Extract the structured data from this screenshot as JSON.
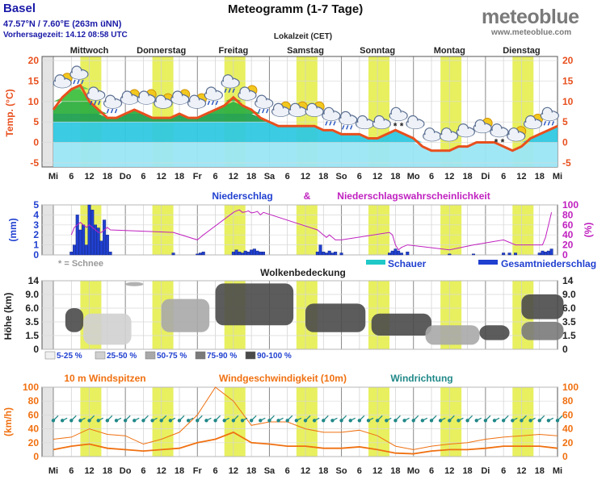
{
  "header": {
    "location": "Basel",
    "coordinates": "47.57°N / 7.60°E (263m üNN)",
    "issued": "Vorhersagezeit: 14.12 08:58 UTC",
    "title": "Meteogramm (1-7 Tage)",
    "logo": "meteoblue",
    "logo_url": "www.meteoblue.com",
    "local_time": "Lokalzeit (CET)"
  },
  "days": [
    "Mittwoch",
    "Donnerstag",
    "Freitag",
    "Samstag",
    "Sonntag",
    "Montag",
    "Dienstag"
  ],
  "x_axis_labels": [
    "Mi",
    "6",
    "12",
    "18",
    "Do",
    "6",
    "12",
    "18",
    "Fr",
    "6",
    "12",
    "18",
    "Sa",
    "6",
    "12",
    "18",
    "So",
    "6",
    "12",
    "18",
    "Mo",
    "6",
    "12",
    "18",
    "Di",
    "6",
    "12",
    "18",
    "Mi"
  ],
  "colors": {
    "temperature": "#e8501e",
    "precip": "#2040d0",
    "probability": "#c020c0",
    "shower": "#20c8c8",
    "wind_gust": "#f07010",
    "wind_speed": "#f07010",
    "wind_dir": "#208888",
    "daylight": "#e8f060",
    "axis_text": "#222222"
  },
  "chart_data": [
    {
      "type": "line",
      "panel": "temperature",
      "ylabel": "Temp. (°C)",
      "yticks": [
        20,
        15,
        10,
        5,
        0,
        -5
      ],
      "ylim": [
        -6,
        21
      ],
      "x_hours": [
        0,
        3,
        6,
        9,
        12,
        15,
        18,
        21,
        24,
        27,
        30,
        33,
        36,
        39,
        42,
        45,
        48,
        51,
        54,
        57,
        60,
        63,
        66,
        69,
        72,
        75,
        78,
        81,
        84,
        87,
        90,
        93,
        96,
        99,
        102,
        105,
        108,
        111,
        114,
        117,
        120,
        123,
        126,
        129,
        132,
        135,
        138,
        141,
        144,
        147,
        150,
        153,
        156,
        159,
        162,
        165,
        168
      ],
      "series": [
        {
          "name": "Temperature",
          "values": [
            8,
            11,
            13,
            14,
            10,
            8,
            6,
            6,
            7,
            8,
            7,
            6,
            6,
            6,
            7,
            6,
            6,
            7,
            8,
            9,
            11,
            9,
            8,
            6,
            5,
            4,
            4,
            4,
            4,
            4,
            3,
            3,
            2,
            2,
            2,
            1,
            1,
            2,
            3,
            2,
            1,
            -1,
            -2,
            -2,
            -2,
            -1,
            -1,
            0,
            0,
            0,
            -1,
            -2,
            -1,
            1,
            2,
            3,
            4
          ]
        }
      ],
      "weather_icons": [
        "cloud-sun",
        "rain-cloud",
        "rain-cloud",
        "rain-cloud",
        "sun-cloud",
        "sun-cloud",
        "sun-cloud",
        "sun-cloud",
        "sun-cloud",
        "rain-cloud",
        "rain-cloud",
        "sun-cloud",
        "rain-cloud",
        "sun-cloud",
        "sun-cloud",
        "sun-cloud",
        "rain-cloud",
        "rain-cloud",
        "cloud",
        "cloud",
        "snow-cloud",
        "cloud",
        "cloud",
        "cloud",
        "cloud",
        "sun-cloud",
        "snow-cloud",
        "sun-cloud",
        "sun-cloud",
        "rain-cloud"
      ]
    },
    {
      "type": "bar",
      "panel": "precipitation",
      "title": "Niederschlag",
      "amp": "&",
      "title2": "Niederschlagswahrscheinlichkeit",
      "ylabel": "(mm)",
      "ylabel_right": "(%)",
      "yticks": [
        5,
        4,
        3,
        2,
        1,
        0
      ],
      "yticks_right": [
        100,
        80,
        60,
        40,
        20,
        0
      ],
      "snow_note": "* = Schnee",
      "legend": [
        "Schauer",
        "Gesamtniederschlag"
      ],
      "x_hours": [
        6,
        7,
        8,
        9,
        10,
        11,
        12,
        13,
        14,
        15,
        16,
        17,
        18,
        19,
        40,
        48,
        49,
        50,
        60,
        61,
        62,
        63,
        64,
        65,
        66,
        67,
        68,
        69,
        70,
        88,
        89,
        90,
        91,
        92,
        93,
        94,
        96,
        112,
        113,
        114,
        115,
        116,
        118,
        132,
        140,
        150,
        152,
        154,
        162,
        163,
        164,
        165,
        166
      ],
      "series": [
        {
          "name": "Gesamtniederschlag",
          "values": [
            0.3,
            1,
            4,
            2.5,
            3,
            1,
            5,
            4.5,
            3,
            2.7,
            1.4,
            3.5,
            2,
            0.3,
            0.2,
            0.1,
            0.2,
            0.3,
            0.3,
            0.5,
            0.3,
            0.2,
            0.4,
            0.3,
            0.5,
            0.6,
            0.4,
            0.3,
            0.3,
            0.3,
            1,
            0.3,
            0.2,
            0.4,
            0.2,
            0.3,
            0.2,
            0.2,
            0.4,
            0.6,
            0.4,
            0.2,
            0.3,
            0.1,
            0.1,
            0.2,
            0.2,
            0.2,
            0.2,
            0.4,
            0.3,
            0.4,
            0.6
          ]
        },
        {
          "name": "Wahrscheinlichkeit",
          "values": [
            40,
            55,
            60,
            65,
            60,
            55,
            60,
            55,
            50,
            45,
            45,
            50,
            55,
            50,
            45,
            30,
            35,
            40,
            85,
            88,
            90,
            85,
            86,
            88,
            84,
            85,
            87,
            80,
            85,
            50,
            45,
            40,
            35,
            40,
            35,
            30,
            30,
            45,
            40,
            20,
            10,
            15,
            20,
            10,
            20,
            30,
            25,
            20,
            20,
            20,
            35,
            60,
            85
          ]
        }
      ]
    },
    {
      "type": "heatmap",
      "panel": "clouds",
      "title": "Wolkenbedeckung",
      "ylabel": "Höhe (km)",
      "yticks": [
        "14",
        "9.0",
        "6.0",
        "3.5",
        "1.5",
        "0"
      ],
      "legend": [
        "5-25 %",
        "25-50 %",
        "50-75 %",
        "75-90 %",
        "90-100 %"
      ],
      "blocks": [
        {
          "x": [
            4,
            10
          ],
          "y": [
            2,
            6
          ],
          "level": 4
        },
        {
          "x": [
            10,
            26
          ],
          "y": [
            0.5,
            5
          ],
          "level": 1
        },
        {
          "x": [
            24,
            30
          ],
          "y": [
            12,
            13.5
          ],
          "level": 2
        },
        {
          "x": [
            36,
            52
          ],
          "y": [
            2,
            8
          ],
          "level": 2
        },
        {
          "x": [
            54,
            80
          ],
          "y": [
            3,
            13
          ],
          "level": 4
        },
        {
          "x": [
            84,
            104
          ],
          "y": [
            2,
            7
          ],
          "level": 4
        },
        {
          "x": [
            106,
            126
          ],
          "y": [
            1.5,
            5
          ],
          "level": 4
        },
        {
          "x": [
            124,
            142
          ],
          "y": [
            0.5,
            3
          ],
          "level": 2
        },
        {
          "x": [
            142,
            152
          ],
          "y": [
            1,
            3
          ],
          "level": 4
        },
        {
          "x": [
            156,
            170
          ],
          "y": [
            4,
            9
          ],
          "level": 4
        },
        {
          "x": [
            156,
            170
          ],
          "y": [
            1,
            3.5
          ],
          "level": 3
        }
      ]
    },
    {
      "type": "line",
      "panel": "wind",
      "titles": [
        "10 m Windspitzen",
        "Windgeschwindigkeit (10m)",
        "Windrichtung"
      ],
      "ylabel": "(km/h)",
      "yticks": [
        100,
        80,
        60,
        40,
        20,
        0
      ],
      "ylim": [
        0,
        100
      ],
      "x_hours": [
        0,
        6,
        12,
        18,
        24,
        30,
        36,
        42,
        48,
        54,
        60,
        66,
        72,
        78,
        84,
        90,
        96,
        102,
        108,
        114,
        120,
        126,
        132,
        138,
        144,
        150,
        156,
        162,
        168
      ],
      "series": [
        {
          "name": "Windspitzen",
          "values": [
            25,
            28,
            40,
            32,
            30,
            18,
            25,
            35,
            60,
            100,
            80,
            45,
            50,
            50,
            40,
            35,
            35,
            38,
            30,
            15,
            10,
            15,
            18,
            20,
            25,
            28,
            30,
            32,
            30
          ]
        },
        {
          "name": "Windgeschwindigkeit",
          "values": [
            10,
            15,
            18,
            12,
            10,
            8,
            10,
            12,
            20,
            25,
            35,
            20,
            18,
            15,
            15,
            12,
            12,
            14,
            10,
            5,
            4,
            8,
            10,
            10,
            12,
            15,
            15,
            15,
            12
          ]
        }
      ]
    }
  ]
}
